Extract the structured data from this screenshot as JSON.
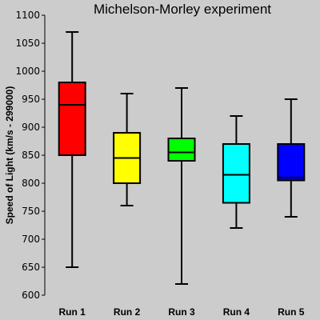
{
  "chart_data": {
    "type": "box",
    "title": "Michelson-Morley experiment",
    "ylabel": "Speed of Light (km/s - 299000)",
    "xlabel": "",
    "ylim": [
      600,
      1100
    ],
    "yticks": [
      600,
      650,
      700,
      750,
      800,
      850,
      900,
      950,
      1000,
      1050,
      1100
    ],
    "grid": false,
    "categories": [
      "Run 1",
      "Run 2",
      "Run 3",
      "Run 4",
      "Run 5"
    ],
    "boxes": [
      {
        "name": "Run 1",
        "min": 650,
        "q1": 850,
        "median": 940,
        "q3": 980,
        "max": 1070,
        "color": "#ff0000"
      },
      {
        "name": "Run 2",
        "min": 760,
        "q1": 800,
        "median": 845,
        "q3": 890,
        "max": 960,
        "color": "#ffff00"
      },
      {
        "name": "Run 3",
        "min": 620,
        "q1": 840,
        "median": 855,
        "q3": 880,
        "max": 970,
        "color": "#00ff00"
      },
      {
        "name": "Run 4",
        "min": 720,
        "q1": 765,
        "median": 815,
        "q3": 870,
        "max": 920,
        "color": "#00ffff"
      },
      {
        "name": "Run 5",
        "min": 740,
        "q1": 805,
        "median": 810,
        "q3": 870,
        "max": 950,
        "color": "#0000ff"
      }
    ]
  }
}
